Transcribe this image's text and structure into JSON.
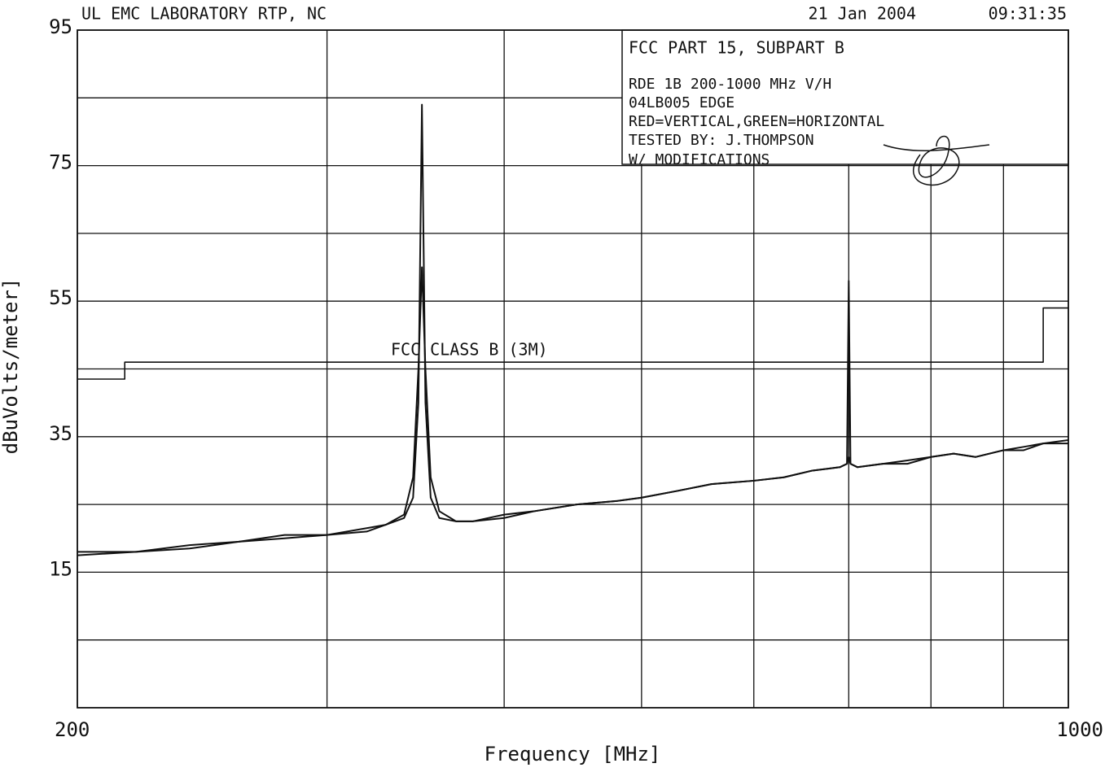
{
  "chart_data": {
    "type": "line",
    "header": {
      "lab": "UL EMC LABORATORY RTP, NC",
      "date": "21 Jan 2004",
      "time": "09:31:35"
    },
    "info_box": {
      "title": "FCC PART 15, SUBPART B",
      "lines": [
        "RDE 1B 200-1000 MHz V/H",
        "04LB005 EDGE",
        "RED=VERTICAL,GREEN=HORIZONTAL",
        "TESTED BY: J.THOMPSON",
        "W/ MODIFICATIONS"
      ]
    },
    "xlabel": "Frequency [MHz]",
    "ylabel": "dBuVolts/meter]",
    "xscale": "log",
    "xlim": [
      200,
      1000
    ],
    "xticks": [
      200,
      1000
    ],
    "xgrid": [
      300,
      400,
      500,
      600,
      700,
      800,
      900
    ],
    "ylim": [
      -5,
      95
    ],
    "yticks": [
      15,
      35,
      55,
      75,
      95
    ],
    "ygrid": [
      5,
      25,
      45,
      65,
      85
    ],
    "grid": true,
    "x": [
      200,
      220,
      240,
      260,
      280,
      300,
      320,
      330,
      340,
      345,
      348,
      350,
      352,
      355,
      360,
      370,
      380,
      400,
      420,
      450,
      480,
      500,
      530,
      560,
      600,
      630,
      660,
      690,
      698,
      700,
      702,
      710,
      740,
      770,
      800,
      830,
      860,
      900,
      930,
      960,
      1000
    ],
    "series": [
      {
        "color": "#111111",
        "values": [
          18,
          18,
          19,
          19.5,
          20.5,
          20.5,
          21.5,
          22,
          23,
          26,
          40,
          84,
          40,
          26,
          23,
          22.5,
          22.5,
          23.5,
          24,
          25,
          25.5,
          26,
          27,
          28,
          28.5,
          29,
          30,
          30.5,
          31,
          58,
          31,
          30.5,
          31,
          31,
          32,
          32.5,
          32,
          33,
          33,
          34,
          34
        ]
      },
      {
        "color": "#111111",
        "values": [
          17.5,
          18,
          18.5,
          19.5,
          20,
          20.5,
          21,
          22,
          23.5,
          29,
          45,
          60,
          45,
          29,
          24,
          22.5,
          22.5,
          23,
          24,
          25,
          25.5,
          26,
          27,
          28,
          28.5,
          29,
          30,
          30.5,
          31,
          32,
          31,
          30.5,
          31,
          31.5,
          32,
          32.5,
          32,
          33,
          33.5,
          34,
          34.5
        ]
      }
    ],
    "limit": {
      "label": "FCC CLASS B (3M)",
      "x": [
        200,
        216,
        216,
        960,
        960,
        1000
      ],
      "values": [
        43.5,
        43.5,
        46,
        46,
        54,
        54
      ]
    }
  }
}
